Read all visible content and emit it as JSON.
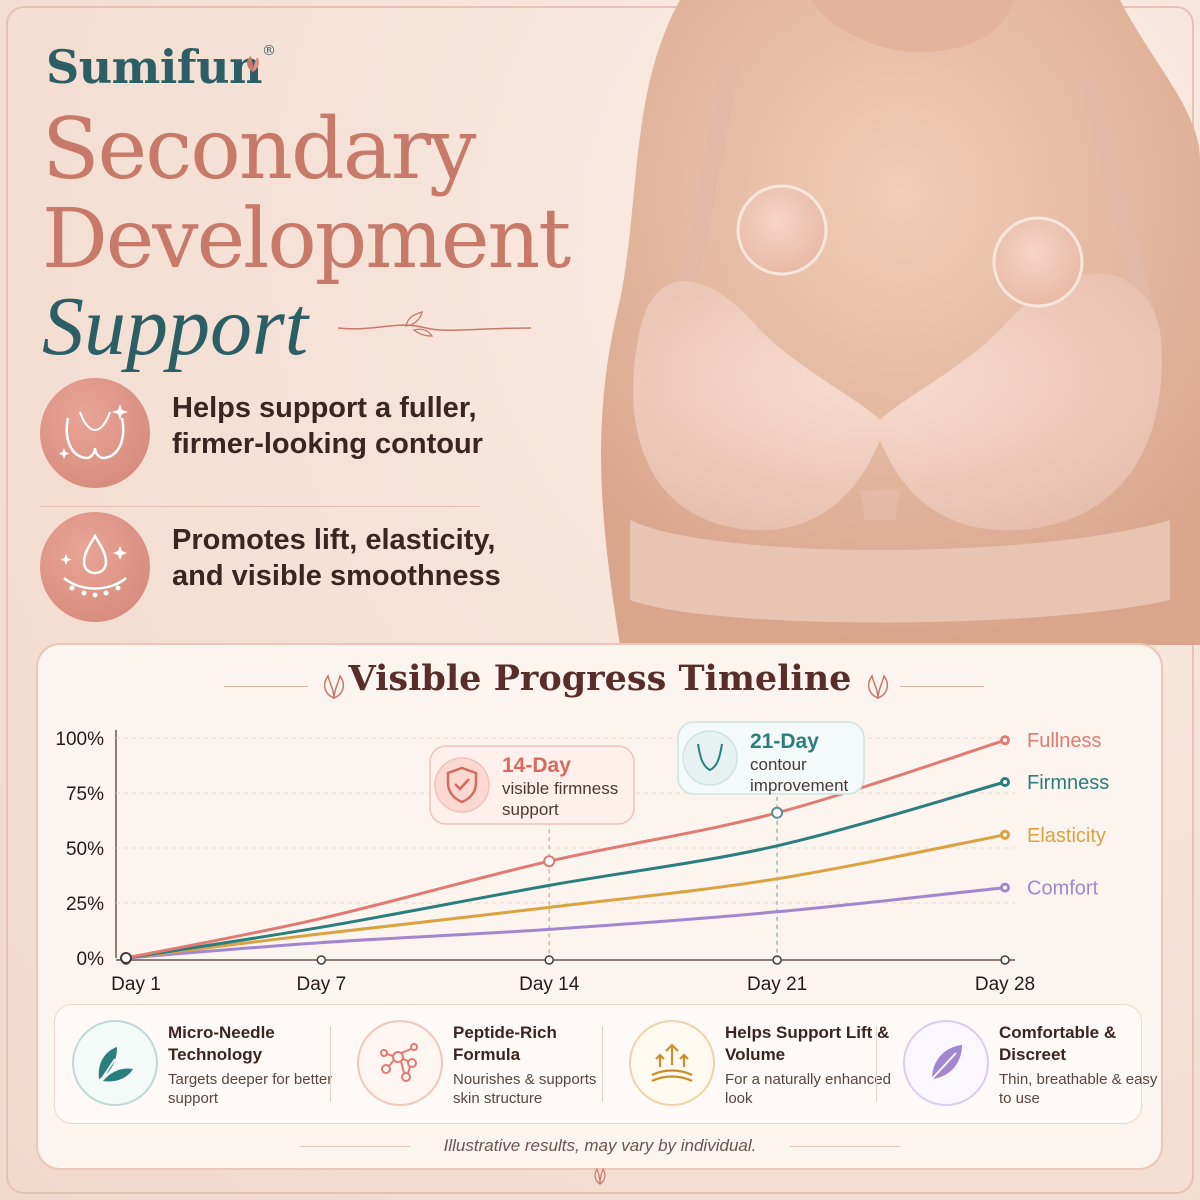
{
  "brand": {
    "name": "Sumifun",
    "mark": "®"
  },
  "headline": {
    "line1": "Secondary",
    "line2": "Development",
    "line3": "Support"
  },
  "features": [
    {
      "icon": "breast-contour-icon",
      "text": "Helps support a fuller, firmer-looking contour"
    },
    {
      "icon": "lift-droplet-icon",
      "text": "Promotes lift, elasticity, and visible smoothness"
    }
  ],
  "colors": {
    "brand_teal": "#2c5e66",
    "headline_rose": "#c7796a",
    "fullness": "#e07a72",
    "firmness": "#2a7e7c",
    "elasticity": "#d9a341",
    "comfort": "#a286d0"
  },
  "chart_data": {
    "type": "line",
    "title": "Visible Progress Timeline",
    "x": [
      "Day 1",
      "Day 7",
      "Day 14",
      "Day 21",
      "Day 28"
    ],
    "x_days": [
      1,
      7,
      14,
      21,
      28
    ],
    "y_ticks": [
      "0%",
      "25%",
      "50%",
      "75%",
      "100%"
    ],
    "ylim": [
      0,
      100
    ],
    "grid": true,
    "legend": "right",
    "series": [
      {
        "name": "Fullness",
        "color": "#e07a72",
        "values": [
          0,
          18,
          44,
          66,
          99
        ]
      },
      {
        "name": "Firmness",
        "color": "#2a7e7c",
        "values": [
          0,
          14,
          33,
          51,
          80
        ]
      },
      {
        "name": "Elasticity",
        "color": "#d9a341",
        "values": [
          0,
          11,
          23,
          36,
          56
        ]
      },
      {
        "name": "Comfort",
        "color": "#a286d0",
        "values": [
          0,
          7,
          13,
          21,
          32
        ]
      }
    ],
    "annotations": [
      {
        "title": "14-Day",
        "text": "visible firmness support",
        "day": 14,
        "value": 44,
        "icon": "shield-check-icon"
      },
      {
        "title": "21-Day",
        "text": "contour improvement",
        "day": 21,
        "value": 66,
        "icon": "torso-icon"
      }
    ]
  },
  "benefits": [
    {
      "icon": "leaf-icon",
      "title": "Micro-Needle Technology",
      "desc": "Targets deeper for better support",
      "color": "#2a7e7c"
    },
    {
      "icon": "molecule-icon",
      "title": "Peptide-Rich Formula",
      "desc": "Nourishes & supports skin structure",
      "color": "#e07a72"
    },
    {
      "icon": "lift-arrows-icon",
      "title": "Helps Support Lift & Volume",
      "desc": "For a naturally enhanced look",
      "color": "#d9a341"
    },
    {
      "icon": "feather-icon",
      "title": "Comfortable & Discreet",
      "desc": "Thin, breathable & easy to use",
      "color": "#a286d0"
    }
  ],
  "footnote": "Illustrative results, may vary by individual."
}
